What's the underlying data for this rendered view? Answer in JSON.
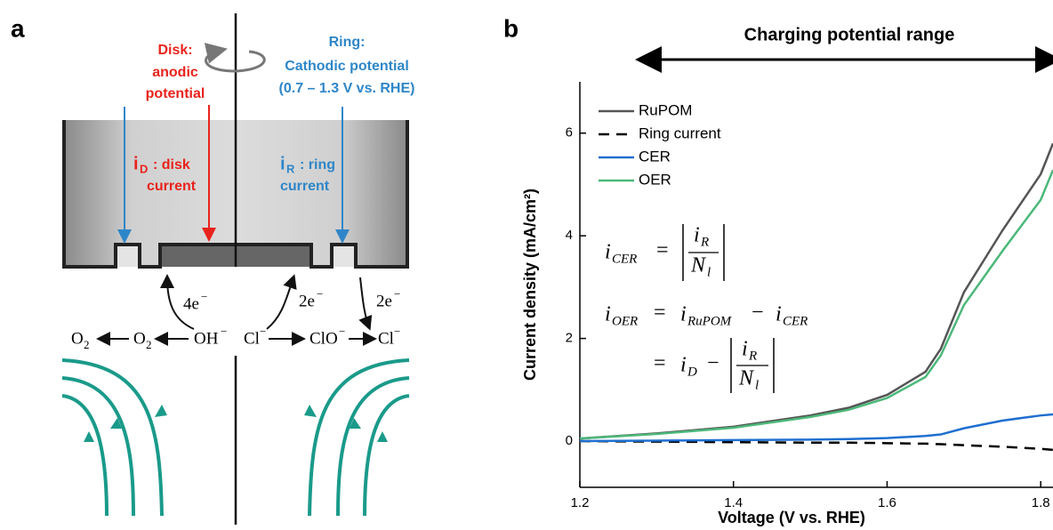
{
  "panel_a": {
    "label": "a",
    "disk_label": [
      "Disk:",
      "anodic",
      "potential"
    ],
    "ring_label": [
      "Ring:",
      "Cathodic potential",
      "(0.7 – 1.3 V vs. RHE)"
    ],
    "disk_current": {
      "symbol": "i",
      "sub": "D",
      "text": [
        ": disk",
        "current"
      ]
    },
    "ring_current": {
      "symbol": "i",
      "sub": "R",
      "text": [
        ": ring",
        "current"
      ]
    },
    "electrons": [
      {
        "base": "4e",
        "sup": "−"
      },
      {
        "base": "2e",
        "sup": "−"
      },
      {
        "base": "2e",
        "sup": "−"
      }
    ],
    "species": [
      {
        "base": "O",
        "sub": "2"
      },
      {
        "base": "O",
        "sub": "2"
      },
      {
        "base": "OH",
        "sup": "−"
      },
      {
        "base": "Cl",
        "sup": "−"
      },
      {
        "base": "ClO",
        "sup": "−"
      },
      {
        "base": "Cl",
        "sup": "−"
      }
    ]
  },
  "chart_data": {
    "type": "line",
    "label": "b",
    "title": "Charging potential range",
    "xlabel": "Voltage (V vs. RHE)",
    "ylabel": "Current density (mA/cm²)",
    "x": [
      1.2,
      1.3,
      1.4,
      1.5,
      1.55,
      1.6,
      1.65,
      1.67,
      1.7,
      1.75,
      1.8,
      1.816
    ],
    "series": [
      {
        "name": "RuPOM",
        "color": "#555555",
        "style": "solid",
        "values": [
          0.05,
          0.15,
          0.28,
          0.5,
          0.65,
          0.9,
          1.35,
          1.8,
          2.9,
          4.1,
          5.2,
          5.8
        ]
      },
      {
        "name": "Ring current",
        "color": "#000000",
        "style": "dashed",
        "values": [
          0,
          -0.01,
          -0.02,
          -0.03,
          -0.03,
          -0.04,
          -0.05,
          -0.06,
          -0.08,
          -0.11,
          -0.15,
          -0.17
        ]
      },
      {
        "name": "CER",
        "color": "#1f6fd0",
        "style": "solid",
        "values": [
          0,
          0.01,
          0.02,
          0.03,
          0.04,
          0.06,
          0.1,
          0.13,
          0.25,
          0.4,
          0.5,
          0.52
        ]
      },
      {
        "name": "OER",
        "color": "#4cb87a",
        "style": "solid",
        "values": [
          0.05,
          0.14,
          0.26,
          0.47,
          0.61,
          0.84,
          1.25,
          1.67,
          2.65,
          3.7,
          4.7,
          5.28
        ]
      }
    ],
    "xlim": [
      1.2,
      1.816
    ],
    "ylim": [
      -0.9,
      7
    ],
    "xticks": [
      1.2,
      1.4,
      1.6,
      1.8
    ],
    "yticks": [
      0,
      2,
      4,
      6
    ],
    "legend": "upper left",
    "equations": [
      [
        "i",
        "CER",
        "=",
        "i",
        "R",
        "N",
        "l"
      ],
      [
        "i",
        "OER",
        "=",
        "i",
        "RuPOM",
        "−",
        "i",
        "CER"
      ],
      [
        "=",
        "i",
        "D",
        "−",
        "i",
        "R",
        "N",
        "l"
      ]
    ]
  }
}
